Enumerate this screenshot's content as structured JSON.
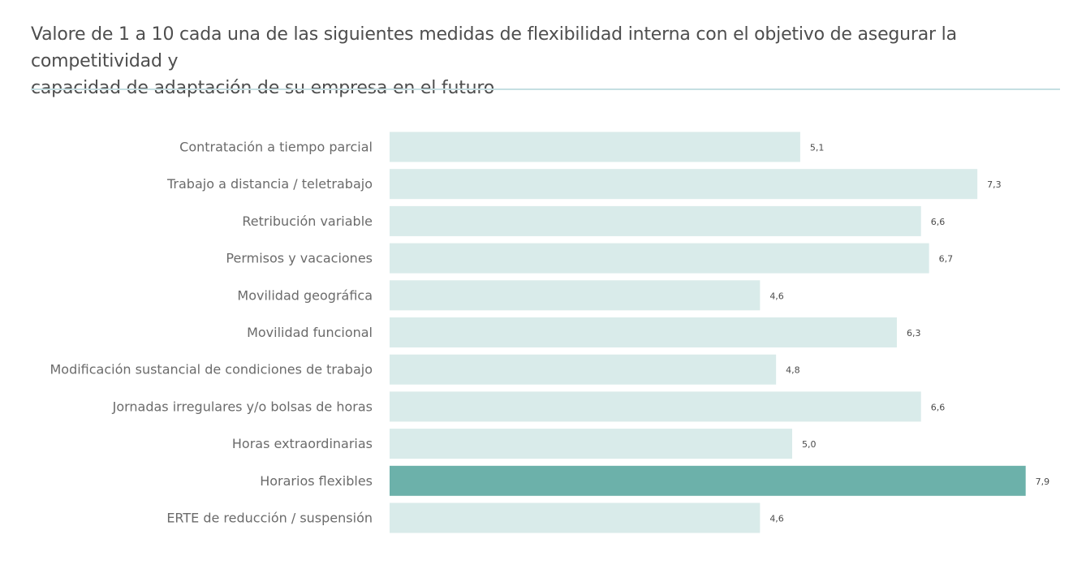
{
  "header": {
    "title_line1": "Valore de 1 a 10 cada una de las siguientes medidas de flexibilidad interna con el objetivo de asegurar la competitividad y",
    "title_line2": "capacidad de adaptación de su empresa en el futuro"
  },
  "chart_data": {
    "type": "bar",
    "orientation": "horizontal",
    "title": "Valore de 1 a 10 cada una de las siguientes medidas de flexibilidad interna con el objetivo de asegurar la competitividad y capacidad de adaptación de su empresa en el futuro",
    "xlabel": "",
    "ylabel": "",
    "xlim": [
      0,
      10
    ],
    "grid": false,
    "categories": [
      "Contratación a tiempo parcial",
      "Trabajo a distancia / teletrabajo",
      "Retribución variable",
      "Permisos y vacaciones",
      "Movilidad geográfica",
      "Movilidad funcional",
      "Modificación sustancial de condiciones de trabajo",
      "Jornadas irregulares y/o bolsas de horas",
      "Horas extraordinarias",
      "Horarios flexibles",
      "ERTE de reducción / suspensión"
    ],
    "values": [
      5.1,
      7.3,
      6.6,
      6.7,
      4.6,
      6.3,
      4.8,
      6.6,
      5.0,
      7.9,
      4.6
    ],
    "value_labels": [
      "5,1",
      "7,3",
      "6,6",
      "6,7",
      "4,6",
      "6,3",
      "4,8",
      "6,6",
      "5,0",
      "7,9",
      "4,6"
    ],
    "highlight_index": 9,
    "colors": {
      "bar": "#d9ebea",
      "highlight": "#6cb1aa"
    }
  }
}
